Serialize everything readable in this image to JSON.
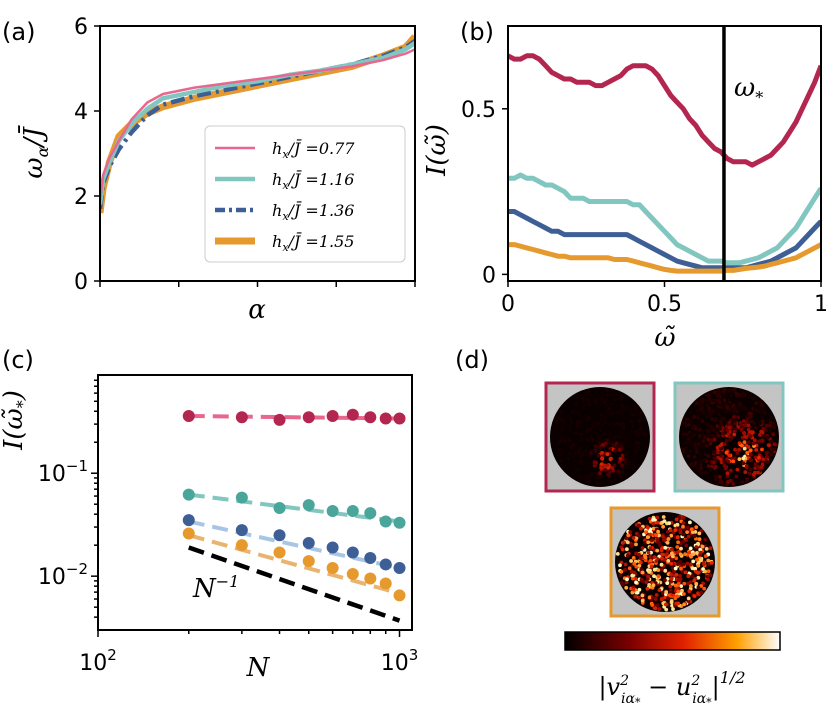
{
  "colors": {
    "red": "#b3264f",
    "pink": "#e8678f",
    "teal": "#82c6c0",
    "teal_dark": "#4aa59b",
    "blue": "#3e5f96",
    "blue_light": "#a7c6e6",
    "orange": "#e69a2e",
    "orange_light": "#e8b470",
    "gray_bg": "#c4c4c4"
  },
  "panels": {
    "a": "(a)",
    "b": "(b)",
    "c": "(c)",
    "d": "(d)"
  },
  "chart_data": [
    {
      "id": "a",
      "type": "line",
      "xlabel": "α",
      "ylabel": "ω_α / J̄",
      "ylim": [
        0,
        6
      ],
      "yticks": [
        "0",
        "2",
        "4",
        "6"
      ],
      "xlim": [
        0,
        1
      ],
      "legend_position": "lower-right",
      "series": [
        {
          "name": "h_x/J̄ =0.77",
          "legend_prefix": "h",
          "legend_sub": "x",
          "legend_suffix": "/J̄ =0.77",
          "color": "pink",
          "style": "solid",
          "x": [
            0,
            0.01,
            0.03,
            0.06,
            0.1,
            0.15,
            0.2,
            0.3,
            0.4,
            0.5,
            0.6,
            0.7,
            0.8,
            0.9,
            0.97,
            1.0
          ],
          "y": [
            1.9,
            2.5,
            2.9,
            3.3,
            3.8,
            4.2,
            4.4,
            4.55,
            4.65,
            4.75,
            4.85,
            4.95,
            5.05,
            5.2,
            5.35,
            5.45
          ]
        },
        {
          "name": "h_x/J̄ =1.16",
          "legend_prefix": "h",
          "legend_sub": "x",
          "legend_suffix": "/J̄ =1.16",
          "color": "teal",
          "style": "solid",
          "x": [
            0,
            0.01,
            0.03,
            0.06,
            0.1,
            0.15,
            0.2,
            0.3,
            0.4,
            0.5,
            0.6,
            0.7,
            0.8,
            0.9,
            0.97,
            1.0
          ],
          "y": [
            1.8,
            2.4,
            2.8,
            3.3,
            3.7,
            4.05,
            4.3,
            4.45,
            4.6,
            4.7,
            4.85,
            4.95,
            5.1,
            5.25,
            5.45,
            5.6
          ]
        },
        {
          "name": "h_x/J̄ =1.36",
          "legend_prefix": "h",
          "legend_sub": "x",
          "legend_suffix": "/J̄ =1.36",
          "color": "blue",
          "style": "dashdot",
          "x": [
            0,
            0.01,
            0.03,
            0.06,
            0.1,
            0.15,
            0.2,
            0.3,
            0.4,
            0.5,
            0.6,
            0.7,
            0.8,
            0.9,
            0.97,
            1.0
          ],
          "y": [
            1.7,
            2.3,
            2.7,
            3.1,
            3.5,
            3.9,
            4.15,
            4.35,
            4.5,
            4.65,
            4.8,
            4.95,
            5.1,
            5.3,
            5.5,
            5.65
          ]
        },
        {
          "name": "h_x/J̄ =1.55",
          "legend_prefix": "h",
          "legend_sub": "x",
          "legend_suffix": "/J̄ =1.55",
          "color": "orange",
          "style": "solid",
          "x": [
            0,
            0.01,
            0.03,
            0.06,
            0.1,
            0.15,
            0.2,
            0.3,
            0.4,
            0.5,
            0.6,
            0.7,
            0.8,
            0.9,
            0.97,
            1.0
          ],
          "y": [
            1.6,
            2.2,
            2.8,
            3.4,
            3.7,
            3.95,
            4.1,
            4.3,
            4.45,
            4.6,
            4.75,
            4.9,
            5.05,
            5.3,
            5.5,
            5.75
          ]
        }
      ]
    },
    {
      "id": "b",
      "type": "line",
      "xlabel": "ω̃",
      "ylabel": "I(ω̃)",
      "xlim": [
        0,
        1
      ],
      "ylim": [
        -0.02,
        0.75
      ],
      "xticks": [
        "0",
        "0.5",
        "1"
      ],
      "yticks": [
        "0",
        "0.5"
      ],
      "vline": {
        "x": 0.69,
        "label": "ω",
        "label_sub": "*"
      },
      "series": [
        {
          "name": "0.77",
          "color": "red",
          "x": [
            0,
            0.02,
            0.04,
            0.06,
            0.08,
            0.1,
            0.12,
            0.14,
            0.16,
            0.18,
            0.2,
            0.22,
            0.24,
            0.26,
            0.28,
            0.3,
            0.32,
            0.34,
            0.36,
            0.38,
            0.4,
            0.42,
            0.44,
            0.46,
            0.48,
            0.5,
            0.52,
            0.54,
            0.56,
            0.58,
            0.6,
            0.62,
            0.64,
            0.66,
            0.68,
            0.7,
            0.72,
            0.74,
            0.76,
            0.78,
            0.8,
            0.82,
            0.84,
            0.86,
            0.88,
            0.9,
            0.92,
            0.94,
            0.96,
            0.98,
            1.0
          ],
          "y": [
            0.66,
            0.65,
            0.65,
            0.66,
            0.66,
            0.65,
            0.63,
            0.61,
            0.6,
            0.59,
            0.59,
            0.58,
            0.58,
            0.58,
            0.57,
            0.57,
            0.58,
            0.59,
            0.6,
            0.62,
            0.63,
            0.63,
            0.63,
            0.62,
            0.6,
            0.57,
            0.54,
            0.52,
            0.5,
            0.47,
            0.45,
            0.42,
            0.4,
            0.38,
            0.37,
            0.35,
            0.34,
            0.34,
            0.34,
            0.33,
            0.34,
            0.35,
            0.36,
            0.38,
            0.4,
            0.43,
            0.46,
            0.5,
            0.54,
            0.58,
            0.63
          ]
        },
        {
          "name": "1.16",
          "color": "teal",
          "x": [
            0,
            0.02,
            0.04,
            0.06,
            0.08,
            0.1,
            0.12,
            0.14,
            0.16,
            0.18,
            0.2,
            0.22,
            0.24,
            0.26,
            0.28,
            0.3,
            0.32,
            0.34,
            0.36,
            0.38,
            0.4,
            0.42,
            0.44,
            0.46,
            0.48,
            0.5,
            0.52,
            0.54,
            0.56,
            0.58,
            0.6,
            0.62,
            0.64,
            0.66,
            0.68,
            0.7,
            0.72,
            0.74,
            0.76,
            0.78,
            0.8,
            0.82,
            0.84,
            0.86,
            0.88,
            0.9,
            0.92,
            0.94,
            0.96,
            0.98,
            1.0
          ],
          "y": [
            0.29,
            0.29,
            0.3,
            0.29,
            0.29,
            0.28,
            0.27,
            0.27,
            0.26,
            0.25,
            0.23,
            0.23,
            0.23,
            0.22,
            0.22,
            0.22,
            0.22,
            0.22,
            0.22,
            0.22,
            0.21,
            0.21,
            0.19,
            0.17,
            0.15,
            0.13,
            0.11,
            0.09,
            0.08,
            0.07,
            0.06,
            0.05,
            0.04,
            0.04,
            0.04,
            0.035,
            0.035,
            0.035,
            0.04,
            0.045,
            0.05,
            0.06,
            0.07,
            0.08,
            0.1,
            0.12,
            0.14,
            0.17,
            0.2,
            0.23,
            0.26
          ]
        },
        {
          "name": "1.36",
          "color": "blue",
          "x": [
            0,
            0.02,
            0.04,
            0.06,
            0.08,
            0.1,
            0.12,
            0.14,
            0.16,
            0.18,
            0.2,
            0.22,
            0.24,
            0.26,
            0.28,
            0.3,
            0.32,
            0.34,
            0.36,
            0.38,
            0.4,
            0.42,
            0.44,
            0.46,
            0.48,
            0.5,
            0.52,
            0.54,
            0.56,
            0.58,
            0.6,
            0.62,
            0.64,
            0.66,
            0.68,
            0.7,
            0.72,
            0.74,
            0.76,
            0.78,
            0.8,
            0.82,
            0.84,
            0.86,
            0.88,
            0.9,
            0.92,
            0.94,
            0.96,
            0.98,
            1.0
          ],
          "y": [
            0.19,
            0.19,
            0.18,
            0.17,
            0.16,
            0.15,
            0.14,
            0.13,
            0.13,
            0.12,
            0.12,
            0.12,
            0.12,
            0.12,
            0.12,
            0.12,
            0.12,
            0.12,
            0.12,
            0.12,
            0.11,
            0.1,
            0.09,
            0.08,
            0.07,
            0.06,
            0.05,
            0.04,
            0.035,
            0.03,
            0.025,
            0.02,
            0.02,
            0.02,
            0.02,
            0.02,
            0.02,
            0.02,
            0.02,
            0.025,
            0.03,
            0.035,
            0.04,
            0.05,
            0.06,
            0.07,
            0.08,
            0.1,
            0.12,
            0.14,
            0.16
          ]
        },
        {
          "name": "1.55",
          "color": "orange",
          "x": [
            0,
            0.02,
            0.04,
            0.06,
            0.08,
            0.1,
            0.12,
            0.14,
            0.16,
            0.18,
            0.2,
            0.22,
            0.24,
            0.26,
            0.28,
            0.3,
            0.32,
            0.34,
            0.36,
            0.38,
            0.4,
            0.42,
            0.44,
            0.46,
            0.48,
            0.5,
            0.52,
            0.54,
            0.56,
            0.58,
            0.6,
            0.62,
            0.64,
            0.66,
            0.68,
            0.7,
            0.72,
            0.74,
            0.76,
            0.78,
            0.8,
            0.82,
            0.84,
            0.86,
            0.88,
            0.9,
            0.92,
            0.94,
            0.96,
            0.98,
            1.0
          ],
          "y": [
            0.09,
            0.09,
            0.085,
            0.08,
            0.075,
            0.07,
            0.065,
            0.06,
            0.055,
            0.055,
            0.05,
            0.05,
            0.05,
            0.05,
            0.05,
            0.05,
            0.05,
            0.045,
            0.045,
            0.045,
            0.04,
            0.035,
            0.03,
            0.025,
            0.02,
            0.015,
            0.012,
            0.01,
            0.01,
            0.01,
            0.01,
            0.01,
            0.01,
            0.01,
            0.01,
            0.012,
            0.012,
            0.015,
            0.018,
            0.02,
            0.022,
            0.025,
            0.03,
            0.035,
            0.04,
            0.045,
            0.05,
            0.06,
            0.07,
            0.08,
            0.09
          ]
        }
      ]
    },
    {
      "id": "c",
      "type": "scatter",
      "xscale": "log",
      "yscale": "log",
      "xlabel": "N",
      "ylabel": "I(ω̃*)",
      "xlim": [
        100,
        1100
      ],
      "ylim": [
        0.003,
        0.9
      ],
      "xticks": [
        {
          "base": "10",
          "exp": "2"
        },
        {
          "base": "10",
          "exp": "3"
        }
      ],
      "yticks": [
        {
          "base": "10",
          "exp": "−1"
        },
        {
          "base": "10",
          "exp": "−2"
        }
      ],
      "reference_line": {
        "label": "N",
        "label_exp": "−1",
        "x": [
          200,
          1000
        ],
        "y": [
          0.019,
          0.0037
        ]
      },
      "series": [
        {
          "name": "0.77",
          "color": "red",
          "fit_color": "pink",
          "x": [
            200,
            300,
            400,
            500,
            600,
            700,
            800,
            900,
            1000
          ],
          "y": [
            0.36,
            0.35,
            0.33,
            0.35,
            0.36,
            0.37,
            0.35,
            0.34,
            0.34
          ],
          "fit": [
            0.36,
            0.34
          ]
        },
        {
          "name": "1.16",
          "color": "teal_dark",
          "fit_color": "teal",
          "x": [
            200,
            300,
            400,
            500,
            600,
            700,
            800,
            900,
            1000
          ],
          "y": [
            0.062,
            0.058,
            0.046,
            0.049,
            0.043,
            0.043,
            0.041,
            0.034,
            0.033
          ],
          "fit": [
            0.062,
            0.034
          ]
        },
        {
          "name": "1.36",
          "color": "blue",
          "fit_color": "blue_light",
          "x": [
            200,
            300,
            400,
            500,
            600,
            700,
            800,
            900,
            1000
          ],
          "y": [
            0.035,
            0.028,
            0.025,
            0.021,
            0.019,
            0.017,
            0.015,
            0.013,
            0.012
          ],
          "fit": [
            0.034,
            0.012
          ]
        },
        {
          "name": "1.55",
          "color": "orange",
          "fit_color": "orange_light",
          "x": [
            200,
            300,
            400,
            500,
            600,
            700,
            800,
            900,
            1000
          ],
          "y": [
            0.026,
            0.02,
            0.017,
            0.014,
            0.012,
            0.0105,
            0.0095,
            0.0085,
            0.0065
          ],
          "fit": [
            0.025,
            0.0068
          ]
        }
      ]
    },
    {
      "id": "d",
      "type": "heatmap",
      "colorbar_label": "|v²_{iα*} − u²_{iα*}|^{1/2}",
      "colorbar_parts": {
        "open": "|v",
        "sup1": "2",
        "sub1": "iα",
        "sub1s": "*",
        "minus": " − u",
        "sup2": "2",
        "sub2": "iα",
        "sub2s": "*",
        "close": "|",
        "exp": "1/2"
      },
      "maps": [
        {
          "name": "0.77",
          "border": "red",
          "intensity": 0.15
        },
        {
          "name": "1.16",
          "border": "teal",
          "intensity": 0.35
        },
        {
          "name": "1.55",
          "border": "orange",
          "intensity": 0.75
        }
      ]
    }
  ]
}
